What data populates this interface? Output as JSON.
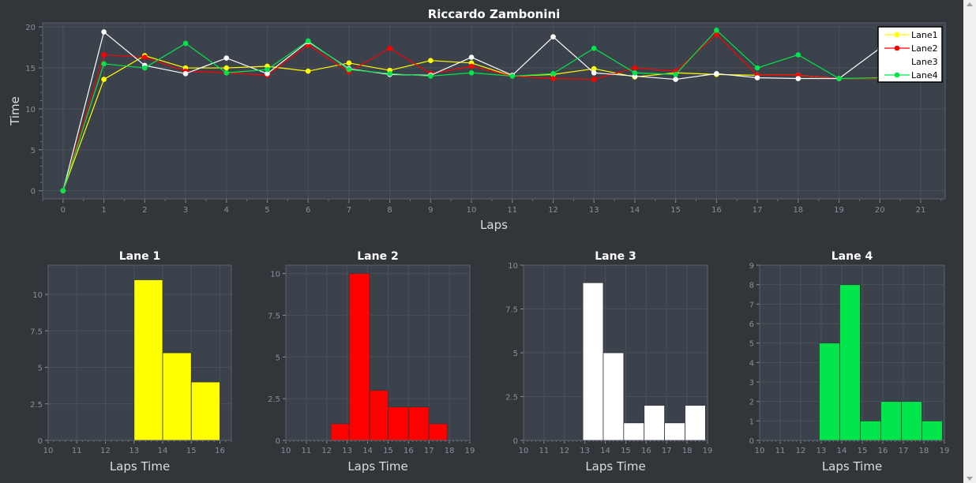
{
  "colors": {
    "page_bg": "#32363b",
    "plot_bg": "#3c424b",
    "grid": "#4a515a",
    "frame": "#5a616b",
    "lane1": "#ffff00",
    "lane2": "#ff0000",
    "lane3": "#ffffff",
    "lane4": "#00e64a"
  },
  "chart_data": [
    {
      "type": "line",
      "title": "Riccardo Zambonini",
      "xlabel": "Laps",
      "ylabel": "Time",
      "xlim": [
        -0.5,
        21.6
      ],
      "ylim": [
        -1,
        20.5
      ],
      "xticks": [
        0,
        1,
        2,
        3,
        4,
        5,
        6,
        7,
        8,
        9,
        10,
        11,
        12,
        13,
        14,
        15,
        16,
        17,
        18,
        19,
        20,
        21
      ],
      "yticks": [
        0,
        5,
        10,
        15,
        20
      ],
      "grid": true,
      "legend_position": "top-right",
      "series": [
        {
          "name": "Lane1",
          "color": "#ffff00",
          "x": [
            0,
            1,
            2,
            3,
            4,
            5,
            6,
            7,
            8,
            9,
            10,
            11,
            12,
            13,
            14,
            15,
            16,
            17,
            18,
            19,
            20,
            21
          ],
          "y": [
            0,
            13.6,
            16.5,
            15.0,
            15.0,
            15.2,
            14.6,
            15.6,
            14.7,
            15.9,
            15.6,
            14.0,
            14.2,
            14.9,
            13.9,
            14.4,
            14.2,
            14.1,
            14.1,
            13.7,
            13.7,
            13.9
          ]
        },
        {
          "name": "Lane2",
          "color": "#ff0000",
          "x": [
            0,
            1,
            2,
            3,
            4,
            5,
            6,
            7,
            8,
            9,
            10,
            11,
            12,
            13,
            14,
            15,
            16,
            17,
            18,
            19,
            20,
            21
          ],
          "y": [
            0,
            16.6,
            16.3,
            14.6,
            14.4,
            14.1,
            17.8,
            14.5,
            17.4,
            14.3,
            15.2,
            14.0,
            13.7,
            13.6,
            15.0,
            14.6,
            19.1,
            14.1,
            14.1,
            13.7,
            13.7,
            13.8
          ]
        },
        {
          "name": "Lane3",
          "color": "#ffffff",
          "x": [
            0,
            1,
            2,
            3,
            4,
            5,
            6,
            7,
            8,
            9,
            10,
            11,
            12,
            13,
            14,
            15,
            16,
            17,
            18,
            19,
            20,
            21
          ],
          "y": [
            0,
            19.4,
            15.3,
            14.3,
            16.2,
            14.3,
            18.2,
            14.9,
            14.2,
            14.1,
            16.3,
            14.1,
            18.8,
            14.4,
            14.0,
            13.6,
            14.3,
            13.8,
            13.7,
            13.7,
            17.4,
            17.8
          ]
        },
        {
          "name": "Lane4",
          "color": "#00e64a",
          "x": [
            0,
            1,
            2,
            3,
            4,
            5,
            6,
            7,
            8,
            9,
            10,
            11,
            12,
            13,
            14,
            15,
            16,
            17,
            18,
            19,
            20,
            21
          ],
          "y": [
            0,
            15.5,
            15.0,
            18.0,
            14.4,
            14.8,
            18.3,
            14.8,
            14.3,
            14.0,
            14.4,
            14.0,
            14.3,
            17.4,
            14.4,
            14.2,
            19.6,
            15.0,
            16.6,
            13.7,
            13.8,
            13.9
          ]
        }
      ]
    },
    {
      "type": "bar",
      "title": "Lane 1",
      "xlabel": "Laps Time",
      "color": "#ffff00",
      "xlim": [
        10,
        16.4
      ],
      "ylim": [
        0,
        12
      ],
      "xticks": [
        10,
        11,
        12,
        13,
        14,
        15,
        16
      ],
      "yticks": [
        0,
        2.5,
        5,
        7.5,
        10
      ],
      "ytick_labels": [
        "0",
        "2.5",
        "5",
        "7.5",
        "10"
      ],
      "bins": [
        [
          13,
          14,
          11
        ],
        [
          14,
          15,
          6
        ],
        [
          15,
          16,
          4
        ]
      ]
    },
    {
      "type": "bar",
      "title": "Lane 2",
      "xlabel": "Laps Time",
      "color": "#ff0000",
      "xlim": [
        10,
        19
      ],
      "ylim": [
        0,
        10.5
      ],
      "xticks": [
        10,
        11,
        12,
        13,
        14,
        15,
        16,
        17,
        18,
        19
      ],
      "yticks": [
        0,
        2.5,
        5,
        7.5,
        10
      ],
      "ytick_labels": [
        "0",
        "2.5",
        "5",
        "7.5",
        "10"
      ],
      "bins": [
        [
          12.2,
          13.1,
          1
        ],
        [
          13.1,
          14.1,
          10
        ],
        [
          14.1,
          15.0,
          3
        ],
        [
          15.0,
          16.0,
          2
        ],
        [
          16.0,
          17.0,
          2
        ],
        [
          17.0,
          17.9,
          1
        ]
      ]
    },
    {
      "type": "bar",
      "title": "Lane 3",
      "xlabel": "Laps Time",
      "color": "#ffffff",
      "xlim": [
        10,
        19
      ],
      "ylim": [
        0,
        10
      ],
      "xticks": [
        10,
        11,
        12,
        13,
        14,
        15,
        16,
        17,
        18,
        19
      ],
      "yticks": [
        0,
        2.5,
        5,
        7.5,
        10
      ],
      "ytick_labels": [
        "0",
        "2.5",
        "5",
        "7.5",
        "10"
      ],
      "bins": [
        [
          12.9,
          13.9,
          9
        ],
        [
          13.9,
          14.9,
          5
        ],
        [
          14.9,
          15.9,
          1
        ],
        [
          15.9,
          16.9,
          2
        ],
        [
          16.9,
          17.9,
          1
        ],
        [
          17.9,
          18.9,
          2
        ]
      ]
    },
    {
      "type": "bar",
      "title": "Lane 4",
      "xlabel": "Laps Time",
      "color": "#00e64a",
      "xlim": [
        10,
        19
      ],
      "ylim": [
        0,
        9
      ],
      "xticks": [
        10,
        11,
        12,
        13,
        14,
        15,
        16,
        17,
        18,
        19
      ],
      "yticks": [
        0,
        1,
        2,
        3,
        4,
        5,
        6,
        7,
        8,
        9
      ],
      "ytick_labels": [
        "0",
        "1",
        "2",
        "3",
        "4",
        "5",
        "6",
        "7",
        "8",
        "9"
      ],
      "bins": [
        [
          12.9,
          13.9,
          5
        ],
        [
          13.9,
          14.9,
          8
        ],
        [
          14.9,
          15.9,
          1
        ],
        [
          15.9,
          16.9,
          2
        ],
        [
          16.9,
          17.9,
          2
        ],
        [
          17.9,
          18.9,
          1
        ]
      ]
    }
  ]
}
